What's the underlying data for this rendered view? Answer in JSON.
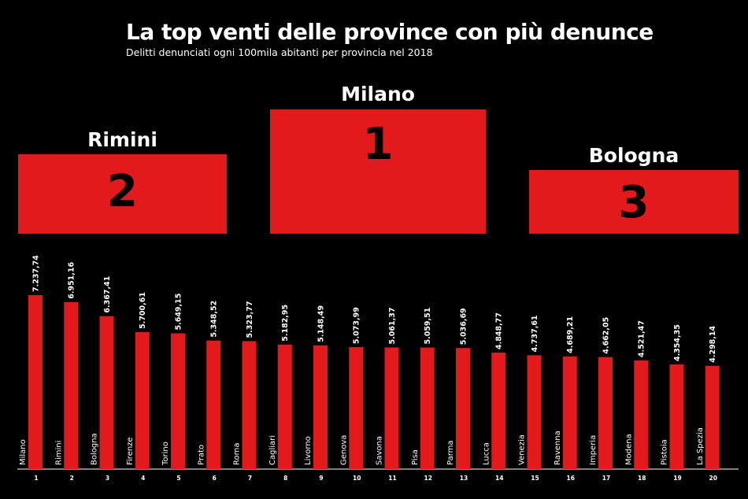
{
  "title": "La top venti delle province con più denunce",
  "subtitle": "Delitti denunciati ogni 100mila abitanti per provincia nel 2018",
  "colors": {
    "background": "#000000",
    "bar": "#e3191b",
    "text": "#ffffff",
    "podium_number": "#000000"
  },
  "podium": [
    {
      "name": "Rimini",
      "rank": "2"
    },
    {
      "name": "Milano",
      "rank": "1"
    },
    {
      "name": "Bologna",
      "rank": "3"
    }
  ],
  "chart_data": {
    "type": "bar",
    "title": "La top venti delle province con più denunce",
    "subtitle": "Delitti denunciati ogni 100mila abitanti per provincia nel 2018",
    "categories": [
      "Milano",
      "Rimini",
      "Bologna",
      "Firenze",
      "Torino",
      "Prato",
      "Roma",
      "Cagliari",
      "Livorno",
      "Genova",
      "Savona",
      "Pisa",
      "Parma",
      "Lucca",
      "Venezia",
      "Ravenna",
      "Imperia",
      "Modena",
      "Pistoia",
      "La Spezia"
    ],
    "ranks": [
      "1",
      "2",
      "3",
      "4",
      "5",
      "6",
      "7",
      "8",
      "9",
      "10",
      "11",
      "12",
      "13",
      "14",
      "15",
      "16",
      "17",
      "18",
      "19",
      "20"
    ],
    "values": [
      7237.74,
      6951.16,
      6367.41,
      5700.61,
      5649.15,
      5348.52,
      5323.77,
      5182.95,
      5148.49,
      5073.99,
      5061.37,
      5059.51,
      5036.69,
      4848.77,
      4737.61,
      4689.21,
      4662.05,
      4521.47,
      4354.35,
      4298.14
    ],
    "value_labels": [
      "7.237,74",
      "6.951,16",
      "6.367,41",
      "5.700,61",
      "5.649,15",
      "5.348,52",
      "5.323,77",
      "5.182,95",
      "5.148,49",
      "5.073,99",
      "5.061,37",
      "5.059,51",
      "5.036,69",
      "4.848,77",
      "4.737,61",
      "4.689,21",
      "4.662,05",
      "4.521,47",
      "4.354,35",
      "4.298,14"
    ],
    "ylim": [
      0,
      7237.74
    ],
    "grid": false,
    "legend": "none"
  }
}
